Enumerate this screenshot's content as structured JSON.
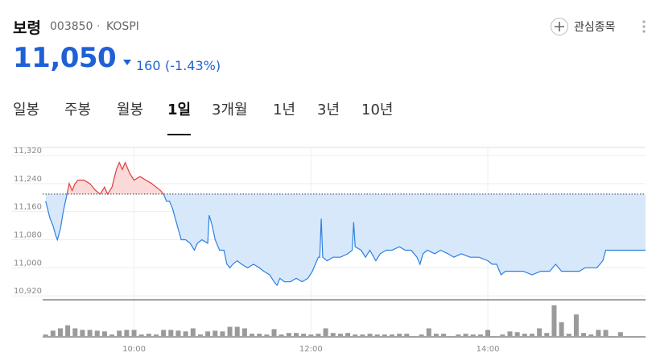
{
  "header": {
    "name": "보령",
    "code": "003850",
    "separator": "·",
    "market": "KOSPI",
    "price": "11,050",
    "change": "160",
    "change_pct": "(-1.43%)",
    "watch_button": "관심종목"
  },
  "tabs": {
    "items": [
      "일봉",
      "주봉",
      "월봉",
      "1일",
      "3개월",
      "1년",
      "3년",
      "10년"
    ],
    "selected": 3
  },
  "chart_data": {
    "type": "line",
    "x": [
      "09:00",
      "09:03",
      "09:05",
      "09:07",
      "09:08",
      "09:10",
      "09:12",
      "09:14",
      "09:16",
      "09:18",
      "09:20",
      "09:22",
      "09:26",
      "09:30",
      "09:34",
      "09:37",
      "09:40",
      "09:42",
      "09:45",
      "09:48",
      "09:50",
      "09:52",
      "09:54",
      "09:57",
      "10:00",
      "10:04",
      "10:08",
      "10:12",
      "10:15",
      "10:18",
      "10:20",
      "10:22",
      "10:24",
      "10:26",
      "10:28",
      "10:30",
      "10:32",
      "10:35",
      "10:38",
      "10:41",
      "10:43",
      "10:46",
      "10:50",
      "10:51",
      "10:53",
      "10:55",
      "10:58",
      "11:01",
      "11:03",
      "11:05",
      "11:07",
      "11:10",
      "11:13",
      "11:17",
      "11:21",
      "11:25",
      "11:28",
      "11:32",
      "11:35",
      "11:37",
      "11:39",
      "11:42",
      "11:46",
      "11:50",
      "11:54",
      "11:58",
      "12:01",
      "12:03",
      "12:05",
      "12:06",
      "12:07",
      "12:08",
      "12:11",
      "12:15",
      "12:20",
      "12:25",
      "12:28",
      "12:29",
      "12:30",
      "12:34",
      "12:37",
      "12:40",
      "12:44",
      "12:47",
      "12:51",
      "12:55",
      "13:00",
      "13:04",
      "13:08",
      "13:12",
      "13:14",
      "13:16",
      "13:19",
      "13:24",
      "13:28",
      "13:33",
      "13:37",
      "13:42",
      "13:48",
      "13:54",
      "14:00",
      "14:03",
      "14:06",
      "14:09",
      "14:12",
      "14:18",
      "14:24",
      "14:30",
      "14:36",
      "14:42",
      "14:46",
      "14:50",
      "14:56",
      "15:02",
      "15:06",
      "15:10",
      "15:14",
      "15:18",
      "15:20",
      "15:30",
      "15:47"
    ],
    "series": [
      {
        "name": "price",
        "up_color": "#e23c3c",
        "down_color": "#2d80e0",
        "up_fill": "#fbd9d9",
        "down_fill": "#d7e8fa",
        "values": [
          11190,
          11140,
          11120,
          11090,
          11080,
          11110,
          11160,
          11200,
          11240,
          11220,
          11240,
          11250,
          11250,
          11240,
          11220,
          11210,
          11230,
          11210,
          11230,
          11280,
          11300,
          11280,
          11300,
          11270,
          11250,
          11260,
          11250,
          11240,
          11230,
          11220,
          11210,
          11190,
          11190,
          11170,
          11140,
          11110,
          11080,
          11080,
          11070,
          11050,
          11070,
          11080,
          11070,
          11150,
          11120,
          11080,
          11050,
          11050,
          11010,
          11000,
          11010,
          11020,
          11010,
          11000,
          11010,
          11000,
          10990,
          10980,
          10960,
          10950,
          10970,
          10960,
          10960,
          10970,
          10960,
          10970,
          10990,
          11010,
          11030,
          11030,
          11140,
          11030,
          11020,
          11030,
          11030,
          11040,
          11050,
          11130,
          11060,
          11050,
          11030,
          11050,
          11020,
          11040,
          11050,
          11050,
          11060,
          11050,
          11050,
          11030,
          11010,
          11040,
          11050,
          11040,
          11050,
          11040,
          11030,
          11040,
          11030,
          11030,
          11020,
          11010,
          11010,
          10980,
          10990,
          10990,
          10990,
          10980,
          10990,
          10990,
          11010,
          10990,
          10990,
          10990,
          11000,
          11000,
          11000,
          11020,
          11050,
          11050,
          11050
        ]
      }
    ],
    "prev_close": 11210,
    "xlim": [
      "08:58",
      "15:47"
    ],
    "xticks": [
      "10:00",
      "12:00",
      "14:00"
    ],
    "ylim": [
      10911,
      11343
    ],
    "yticks": [
      {
        "value": 11320,
        "label": "11,320"
      },
      {
        "value": 11240,
        "label": "11,240"
      },
      {
        "value": 11160,
        "label": "11,160"
      },
      {
        "value": 11080,
        "label": "11,080"
      },
      {
        "value": 11000,
        "label": "11,000"
      },
      {
        "value": 10920,
        "label": "10,920"
      }
    ],
    "grid": true,
    "volume": {
      "color": "#9a9a9a",
      "ylim": [
        0,
        45
      ],
      "x": [
        "09:00",
        "09:05",
        "09:10",
        "09:15",
        "09:20",
        "09:25",
        "09:30",
        "09:35",
        "09:40",
        "09:45",
        "09:50",
        "09:55",
        "10:00",
        "10:05",
        "10:10",
        "10:15",
        "10:20",
        "10:25",
        "10:30",
        "10:35",
        "10:40",
        "10:45",
        "10:50",
        "10:55",
        "11:00",
        "11:05",
        "11:10",
        "11:15",
        "11:20",
        "11:25",
        "11:30",
        "11:35",
        "11:40",
        "11:45",
        "11:50",
        "11:55",
        "12:00",
        "12:05",
        "12:10",
        "12:15",
        "12:20",
        "12:25",
        "12:30",
        "12:35",
        "12:40",
        "12:45",
        "12:50",
        "12:55",
        "13:00",
        "13:05",
        "13:10",
        "13:15",
        "13:20",
        "13:25",
        "13:30",
        "13:35",
        "13:40",
        "13:45",
        "13:50",
        "13:55",
        "14:00",
        "14:05",
        "14:10",
        "14:15",
        "14:20",
        "14:25",
        "14:30",
        "14:35",
        "14:40",
        "14:45",
        "14:50",
        "14:55",
        "15:00",
        "15:05",
        "15:10",
        "15:15",
        "15:20",
        "15:25",
        "15:30"
      ],
      "values": [
        2,
        7,
        10,
        14,
        10,
        8,
        8,
        7,
        6,
        2,
        7,
        8,
        8,
        2,
        3,
        2,
        8,
        8,
        7,
        6,
        10,
        2,
        6,
        7,
        6,
        12,
        12,
        10,
        3,
        3,
        2,
        9,
        2,
        4,
        4,
        3,
        2,
        3,
        10,
        4,
        3,
        4,
        2,
        2,
        3,
        2,
        2,
        2,
        3,
        3,
        0,
        2,
        10,
        3,
        3,
        0,
        2,
        3,
        2,
        2,
        8,
        0,
        2,
        6,
        5,
        3,
        3,
        10,
        4,
        40,
        18,
        3,
        28,
        4,
        2,
        8,
        8,
        0,
        5
      ]
    }
  }
}
